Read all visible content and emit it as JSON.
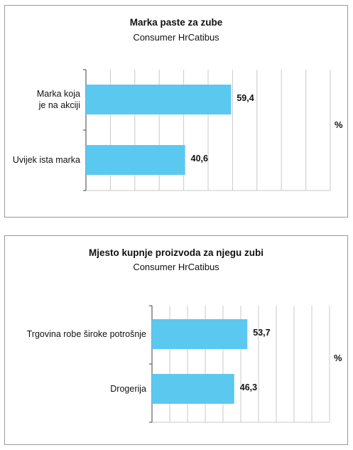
{
  "chart_data": [
    {
      "type": "bar",
      "orientation": "horizontal",
      "title": "Marka paste za zube",
      "subtitle": "Consumer HrCatibus",
      "unit": "%",
      "categories": [
        "Marka koja\nje na akciji",
        "Uvijek ista marka"
      ],
      "values": [
        59.4,
        40.6
      ],
      "value_labels": [
        "59,4",
        "40,6"
      ],
      "xlim": [
        0,
        100
      ],
      "grid": true,
      "bar_color": "#5bc8f0"
    },
    {
      "type": "bar",
      "orientation": "horizontal",
      "title": "Mjesto kupnje proizvoda za njegu zubi",
      "subtitle": "Consumer HrCatibus",
      "unit": "%",
      "categories": [
        "Trgovina robe široke potrošnje",
        "Drogerija"
      ],
      "values": [
        53.7,
        46.3
      ],
      "value_labels": [
        "53,7",
        "46,3"
      ],
      "xlim": [
        0,
        100
      ],
      "grid": true,
      "bar_color": "#5bc8f0"
    }
  ]
}
